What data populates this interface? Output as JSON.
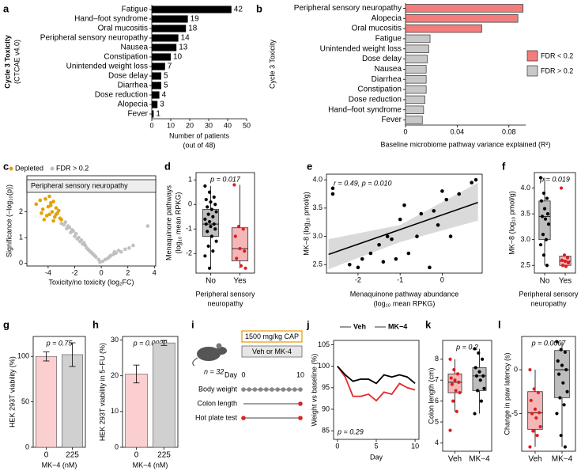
{
  "chart_data": [
    {
      "type": "hbar",
      "label": "a",
      "categories": [
        "Fatigue",
        "Hand–foot syndrome",
        "Oral mucositis",
        "Peripheral sensory neuropathy",
        "Nausea",
        "Constipation",
        "Unintended weight loss",
        "Dose delay",
        "Diarrhea",
        "Dose reduction",
        "Alopecia",
        "Fever"
      ],
      "values": [
        42,
        19,
        18,
        14,
        13,
        10,
        7,
        5,
        5,
        4,
        3,
        1
      ],
      "color": "#000000",
      "show_values": true,
      "xlim": [
        0,
        50
      ],
      "xticks": [
        0,
        10,
        20,
        30,
        40,
        50
      ],
      "xlabel": [
        "Number of patients",
        "(out of 48)"
      ],
      "ylabel": [
        "Cycle 3 Toxicity",
        "(CTCAE v4.0)"
      ]
    },
    {
      "type": "hbar",
      "label": "b",
      "categories": [
        "Peripheral sensory neuropathy",
        "Alopecia",
        "Oral mucositis",
        "Fatigue",
        "Unintended weight loss",
        "Dose delay",
        "Nausea",
        "Diarrhea",
        "Constipation",
        "Dose reduction",
        "Hand–foot syndrome",
        "Fever"
      ],
      "values": [
        0.091,
        0.087,
        0.059,
        0.019,
        0.018,
        0.017,
        0.016,
        0.016,
        0.016,
        0.015,
        0.014,
        0.013
      ],
      "bar_colors": [
        "#f47c7c",
        "#f47c7c",
        "#f47c7c",
        "#c8c8c8",
        "#c8c8c8",
        "#c8c8c8",
        "#c8c8c8",
        "#c8c8c8",
        "#c8c8c8",
        "#c8c8c8",
        "#c8c8c8",
        "#c8c8c8"
      ],
      "legend": [
        {
          "name": "FDR < 0.2",
          "color": "#f47c7c"
        },
        {
          "name": "FDR > 0.2",
          "color": "#c8c8c8"
        }
      ],
      "xlim": [
        0,
        0.093
      ],
      "xticks": [
        0,
        0.04,
        0.08
      ],
      "xlabel": [
        "Baseline microbiome pathway variance explained (R²)"
      ],
      "ylabel": [
        "Cycle 3 Toxicity"
      ]
    },
    {
      "type": "scatter",
      "label": "c",
      "panel_title": "Peripheral sensory neuropathy",
      "legend": true,
      "series": [
        {
          "name": "Depleted",
          "color": "#e6a100",
          "x": [
            -4.9,
            -4.6,
            -4.4,
            -4.2,
            -4.0,
            -3.9,
            -3.8,
            -3.7,
            -3.6,
            -3.5,
            -3.4,
            -3.3,
            -3.2,
            -3.1,
            -4.3,
            -4.1,
            -3.9,
            -3.6,
            -3.4,
            -3.0,
            -4.5,
            -3.8
          ],
          "values": [
            2.3,
            2.45,
            2.1,
            2.5,
            2.2,
            1.9,
            2.35,
            2.0,
            2.4,
            1.8,
            2.15,
            1.95,
            2.05,
            1.75,
            1.7,
            1.85,
            2.6,
            1.65,
            1.9,
            1.7,
            1.95,
            2.25
          ]
        },
        {
          "name": "FDR > 0.2",
          "color": "#c0c0c0",
          "x": [
            -3.0,
            -2.8,
            -2.6,
            -2.5,
            -2.3,
            -2.2,
            -2.0,
            -1.9,
            -1.8,
            -1.6,
            -1.5,
            -1.4,
            -1.2,
            -1.1,
            -1.0,
            -0.8,
            -0.7,
            -0.5,
            -0.4,
            -0.2,
            -0.1,
            0.1,
            0.3,
            0.5,
            0.7,
            0.9,
            1.1,
            1.3,
            1.5,
            1.8,
            2.1,
            2.4,
            3.5,
            -2.7,
            -2.1,
            -1.7,
            -1.3,
            -0.9,
            -0.6,
            0.6,
            1.0,
            -2.4
          ],
          "values": [
            1.55,
            1.5,
            1.35,
            1.45,
            1.2,
            1.3,
            1.05,
            1.15,
            0.95,
            0.85,
            0.9,
            0.75,
            0.7,
            0.6,
            0.55,
            0.45,
            0.4,
            0.3,
            0.25,
            0.15,
            0.05,
            0.08,
            0.15,
            0.2,
            0.3,
            0.35,
            0.4,
            0.5,
            0.45,
            0.55,
            0.6,
            0.7,
            1.45,
            1.6,
            1.25,
            1.0,
            0.8,
            0.5,
            0.35,
            0.25,
            0.45,
            1.4
          ]
        }
      ],
      "xlim": [
        -5.6,
        4.1
      ],
      "ylim": [
        -0.1,
        3.4
      ],
      "xticks": [
        -4,
        -2,
        0,
        2,
        4
      ],
      "yticks": [
        0,
        1,
        2
      ],
      "xlabel": [
        "Toxicity/no toxicity (log₂FC)"
      ],
      "ylabel": [
        "Significance (−log₁₀(p))"
      ]
    },
    {
      "type": "box",
      "label": "d",
      "annotation": "p = 0.017",
      "categories": [
        "No",
        "Yes"
      ],
      "boxes": [
        {
          "color": "#bdbdbd",
          "point_color": "#000000",
          "whisker_low": -2.6,
          "q1": -1.3,
          "median": -0.8,
          "q3": -0.2,
          "whisker_high": 0.75,
          "points": [
            0.75,
            0.5,
            0.3,
            0.2,
            0.1,
            0.0,
            -0.1,
            -0.2,
            -0.3,
            -0.4,
            -0.5,
            -0.6,
            -0.7,
            -0.8,
            -0.8,
            -0.9,
            -1.0,
            -1.1,
            -1.3,
            -1.5,
            -1.7,
            -1.9,
            -2.1,
            -2.6
          ]
        },
        {
          "color": "#f4b6b6",
          "point_color": "#e41a1c",
          "whisker_low": -2.6,
          "q1": -2.3,
          "median": -1.8,
          "q3": -0.95,
          "whisker_high": 0.8,
          "points": [
            0.8,
            -0.9,
            -1.0,
            -1.3,
            -1.8,
            -1.9,
            -2.2,
            -2.5,
            -2.6
          ]
        }
      ],
      "ylim": [
        -2.8,
        1.3
      ],
      "yticks": [
        -2,
        -1,
        0,
        1
      ],
      "xlabel": [
        "Peripheral sensory",
        "neuropathy"
      ],
      "ylabel": [
        "Menaquinone pathways",
        "(log₁₀ mean RPKG)"
      ]
    },
    {
      "type": "scatter",
      "label": "e",
      "annotation": "r = 0.49, p = 0.010",
      "series": [
        {
          "color": "#000000",
          "x": [
            -2.6,
            -2.6,
            -2.2,
            -2.0,
            -1.9,
            -1.7,
            -1.5,
            -1.4,
            -1.3,
            -1.2,
            -1.1,
            -1.0,
            -0.9,
            -0.8,
            -0.6,
            -0.5,
            -0.3,
            -0.2,
            -0.1,
            0.0,
            0.1,
            0.2,
            0.4,
            0.7,
            0.8
          ],
          "values": [
            3.85,
            3.75,
            2.5,
            2.45,
            2.6,
            2.7,
            2.85,
            2.55,
            3.0,
            2.95,
            2.6,
            3.3,
            3.55,
            2.7,
            3.0,
            3.4,
            2.45,
            3.45,
            3.2,
            3.8,
            3.65,
            3.0,
            3.75,
            3.95,
            4.0
          ]
        }
      ],
      "fit": {
        "x": [
          -2.7,
          0.85
        ],
        "y": [
          2.68,
          3.6
        ]
      },
      "ci": {
        "x": [
          -2.7,
          -1.0,
          0.85
        ],
        "lower": [
          2.42,
          2.9,
          3.28
        ],
        "upper": [
          2.95,
          3.2,
          3.95
        ]
      },
      "xlim": [
        -2.75,
        0.95
      ],
      "ylim": [
        2.35,
        4.1
      ],
      "xticks": [
        -2,
        -1,
        0
      ],
      "yticks": [
        2.5,
        {
          "value": 3,
          "label": "3.0"
        },
        3.5,
        {
          "value": 4,
          "label": "4.0"
        }
      ],
      "xlabel": [
        "Menaquinone pathway abundance",
        "(log₁₀ mean RPKG)"
      ],
      "ylabel": [
        "MK−8 (log₁₀ pmol/g)"
      ]
    },
    {
      "type": "box",
      "label": "f",
      "annotation": "p = 0.019",
      "categories": [
        "No",
        "Yes"
      ],
      "boxes": [
        {
          "color": "#bdbdbd",
          "point_color": "#000000",
          "whisker_low": 2.5,
          "q1": 3.0,
          "median": 3.45,
          "q3": 3.75,
          "whisker_high": 4.2,
          "points": [
            4.2,
            3.9,
            3.8,
            3.75,
            3.6,
            3.5,
            3.45,
            3.4,
            3.3,
            3.1,
            3.0,
            2.9,
            2.7,
            2.5
          ]
        },
        {
          "color": "#f4b6b6",
          "point_color": "#e41a1c",
          "whisker_low": 2.45,
          "q1": 2.5,
          "median": 2.58,
          "q3": 2.68,
          "whisker_high": 2.7,
          "points": [
            4.0,
            2.7,
            2.65,
            2.6,
            2.58,
            2.55,
            2.5,
            2.48
          ]
        }
      ],
      "ylim": [
        2.35,
        4.3
      ],
      "yticks": [
        2.5,
        {
          "value": 3,
          "label": "3.0"
        },
        3.5,
        {
          "value": 4,
          "label": "4.0"
        }
      ],
      "xlabel": [
        "Peripheral sensory",
        "neuropathy"
      ],
      "ylabel": [
        "MK−8 (log₁₀ pmol/g)"
      ]
    },
    {
      "type": "bar",
      "label": "g",
      "annotation": "p = 0.75",
      "categories": [
        "0",
        "225"
      ],
      "values": [
        100,
        102
      ],
      "errors": [
        5,
        13
      ],
      "colors": [
        "#fbcfcf",
        "#d0d0d0"
      ],
      "ylim": [
        0,
        122
      ],
      "yticks": [
        0,
        50,
        100
      ],
      "xlabel": [
        "MK−4 (nM)"
      ],
      "ylabel": [
        "HEK 293T viability (%)"
      ]
    },
    {
      "type": "bar",
      "label": "h",
      "annotation": "p = 0.0039",
      "categories": [
        "0",
        "225"
      ],
      "values": [
        20.5,
        29.2
      ],
      "errors": [
        2.5,
        0.7
      ],
      "colors": [
        "#fbcfcf",
        "#d0d0d0"
      ],
      "ylim": [
        0,
        31
      ],
      "yticks": [
        0,
        10,
        20,
        30
      ],
      "xlabel": [
        "MK−4 (nM)"
      ],
      "ylabel": [
        "HEK 293T viability in 5−FU (%)"
      ]
    },
    {
      "type": "line",
      "label": "j",
      "annotation": "p = 0.29",
      "x": [
        0,
        1,
        2,
        3,
        4,
        5,
        6,
        7,
        8,
        9,
        10
      ],
      "series": [
        {
          "name": "Veh",
          "color": "#e8262a",
          "values": [
            100,
            97.5,
            93,
            93,
            93.5,
            92,
            94,
            93.5,
            96,
            95,
            94.5
          ]
        },
        {
          "name": "MK−4",
          "color": "#000000",
          "values": [
            100,
            98,
            96.5,
            97,
            97,
            96,
            98,
            97.5,
            98,
            97.5,
            96
          ]
        }
      ],
      "xlim": [
        -0.5,
        10.5
      ],
      "ylim": [
        83,
        106
      ],
      "xticks": [
        0,
        5,
        10
      ],
      "yticks": [
        85,
        90,
        95,
        100,
        105
      ],
      "xlabel": [
        "Day"
      ],
      "ylabel": [
        "Weight vs baseline (%)"
      ]
    },
    {
      "type": "box",
      "label": "k",
      "annotation": "p = 0.2",
      "categories": [
        "Veh",
        "MK−4"
      ],
      "boxes": [
        {
          "color": "#f4b6b6",
          "point_color": "#e41a1c",
          "whisker_low": 5.5,
          "q1": 6.4,
          "median": 6.9,
          "q3": 7.3,
          "whisker_high": 8.0,
          "points": [
            8.0,
            7.5,
            7.3,
            7.1,
            7.0,
            6.9,
            6.8,
            6.5,
            6.4,
            6.0,
            5.5,
            4.6
          ]
        },
        {
          "color": "#bdbdbd",
          "point_color": "#000000",
          "whisker_low": 5.4,
          "q1": 6.5,
          "median": 7.2,
          "q3": 7.6,
          "whisker_high": 8.5,
          "points": [
            8.5,
            8.3,
            8.0,
            7.6,
            7.4,
            7.2,
            7.2,
            7.0,
            6.6,
            6.5,
            6.0,
            5.4
          ]
        }
      ],
      "ylim": [
        3.6,
        8.9
      ],
      "yticks": [
        4,
        5,
        6,
        7,
        8
      ],
      "ylabel": [
        "Colon length (cm)"
      ]
    },
    {
      "type": "box",
      "label": "l",
      "annotation": "p = 0.0067",
      "categories": [
        "Veh",
        "MK−4"
      ],
      "boxes": [
        {
          "color": "#f4b6b6",
          "point_color": "#e41a1c",
          "whisker_low": -8.8,
          "q1": -6.8,
          "median": -4.9,
          "q3": -2.5,
          "whisker_high": 0.0,
          "points": [
            0.0,
            -2.2,
            -2.6,
            -3.5,
            -4.5,
            -4.9,
            -5.0,
            -5.5,
            -6.5,
            -7.0,
            -7.5,
            -8.8
          ]
        },
        {
          "color": "#bdbdbd",
          "point_color": "#000000",
          "whisker_low": -8.8,
          "q1": -3.2,
          "median": 0.0,
          "q3": 2.2,
          "whisker_high": 3.2,
          "points": [
            3.2,
            2.3,
            2.0,
            1.0,
            0.5,
            0.0,
            -0.5,
            -1.5,
            -2.5,
            -3.2,
            -4.0,
            -5.0,
            -7.5,
            -8.8
          ]
        }
      ],
      "ylim": [
        -9.3,
        3.8
      ],
      "yticks": [
        -5,
        0
      ],
      "ylabel": [
        "Change in paw latency (s)"
      ]
    }
  ],
  "diagram": {
    "label": "i",
    "n": "n = 32",
    "treatment": "1500 mg/kg CAP",
    "arms": "Veh or MK-4",
    "day_label": "Day",
    "day_start": "0",
    "day_end": "10",
    "rows": [
      "Body weight",
      "Colon length",
      "Hot plate test"
    ]
  }
}
